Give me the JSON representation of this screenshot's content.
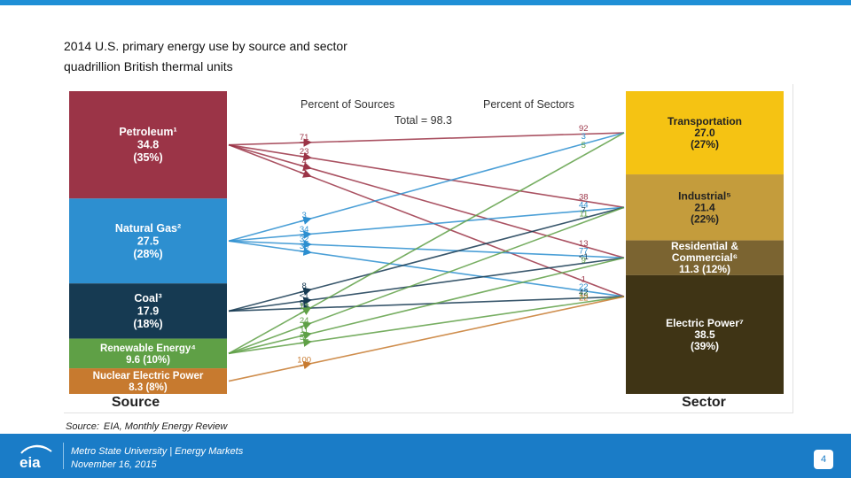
{
  "header": {
    "title": "2014 U.S. primary energy use by source and sector",
    "subtitle": "quadrillion British thermal units"
  },
  "chart": {
    "percent_of_sources_label": "Percent of Sources",
    "percent_of_sectors_label": "Percent of Sectors",
    "total_label": "Total = 98.3",
    "source_axis_label": "Source",
    "sector_axis_label": "Sector",
    "sources": [
      {
        "key": "petroleum",
        "lines": [
          "Petroleum¹",
          "34.8",
          "(35%)"
        ],
        "value": 34.8,
        "color": "#9b3447"
      },
      {
        "key": "natural_gas",
        "lines": [
          "Natural Gas²",
          "27.5",
          "(28%)"
        ],
        "value": 27.5,
        "color": "#2d8fd0"
      },
      {
        "key": "coal",
        "lines": [
          "Coal³",
          "17.9",
          "(18%)"
        ],
        "value": 17.9,
        "color": "#163a52"
      },
      {
        "key": "renewable",
        "lines": [
          "Renewable Energy⁴",
          "9.6 (10%)"
        ],
        "value": 9.6,
        "color": "#5fa046"
      },
      {
        "key": "nuclear",
        "lines": [
          "Nuclear Electric Power",
          "8.3 (8%)"
        ],
        "value": 8.3,
        "color": "#c77a2f"
      }
    ],
    "sectors": [
      {
        "key": "transportation",
        "lines": [
          "Transportation",
          "27.0",
          "(27%)"
        ],
        "value": 27.0,
        "color": "#f5c313",
        "text_color": "#222222"
      },
      {
        "key": "industrial",
        "lines": [
          "Industrial⁵",
          "21.4",
          "(22%)"
        ],
        "value": 21.4,
        "color": "#c49c3c",
        "text_color": "#222222"
      },
      {
        "key": "residential",
        "lines": [
          "Residential &",
          "Commercial⁶",
          "11.3 (12%)"
        ],
        "value": 11.3,
        "color": "#7b6431",
        "text_color": "#ffffff"
      },
      {
        "key": "electric",
        "lines": [
          "Electric Power⁷",
          "38.5",
          "(39%)"
        ],
        "value": 38.5,
        "color": "#3f3415",
        "text_color": "#ffffff"
      }
    ],
    "flows": [
      {
        "from": "petroleum",
        "to": "transportation",
        "pct_source": "71",
        "pct_sector": "92"
      },
      {
        "from": "petroleum",
        "to": "industrial",
        "pct_source": "23",
        "pct_sector": "38"
      },
      {
        "from": "petroleum",
        "to": "residential",
        "pct_source": "4",
        "pct_sector": "13"
      },
      {
        "from": "petroleum",
        "to": "electric",
        "pct_source": "1",
        "pct_sector": "1"
      },
      {
        "from": "natural_gas",
        "to": "transportation",
        "pct_source": "3",
        "pct_sector": "3"
      },
      {
        "from": "natural_gas",
        "to": "industrial",
        "pct_source": "34",
        "pct_sector": "44"
      },
      {
        "from": "natural_gas",
        "to": "residential",
        "pct_source": "32",
        "pct_sector": "77"
      },
      {
        "from": "natural_gas",
        "to": "electric",
        "pct_source": "30",
        "pct_sector": "22"
      },
      {
        "from": "coal",
        "to": "industrial",
        "pct_source": "8",
        "pct_sector": "7"
      },
      {
        "from": "coal",
        "to": "residential",
        "pct_source": "<1",
        "pct_sector": "<1"
      },
      {
        "from": "coal",
        "to": "electric",
        "pct_source": "91",
        "pct_sector": "42"
      },
      {
        "from": "renewable",
        "to": "transportation",
        "pct_source": "13",
        "pct_sector": "5"
      },
      {
        "from": "renewable",
        "to": "industrial",
        "pct_source": "24",
        "pct_sector": "11"
      },
      {
        "from": "renewable",
        "to": "residential",
        "pct_source": "11",
        "pct_sector": "9"
      },
      {
        "from": "renewable",
        "to": "electric",
        "pct_source": "52",
        "pct_sector": "13"
      },
      {
        "from": "nuclear",
        "to": "electric",
        "pct_source": "100",
        "pct_sector": "22"
      }
    ]
  },
  "source_note": {
    "label": "Source:",
    "text": "EIA,  Monthly Energy Review"
  },
  "footer": {
    "logo_text": "eia",
    "line1": "Metro State University | Energy Markets",
    "line2": "November 16, 2015",
    "page_number": "4"
  }
}
